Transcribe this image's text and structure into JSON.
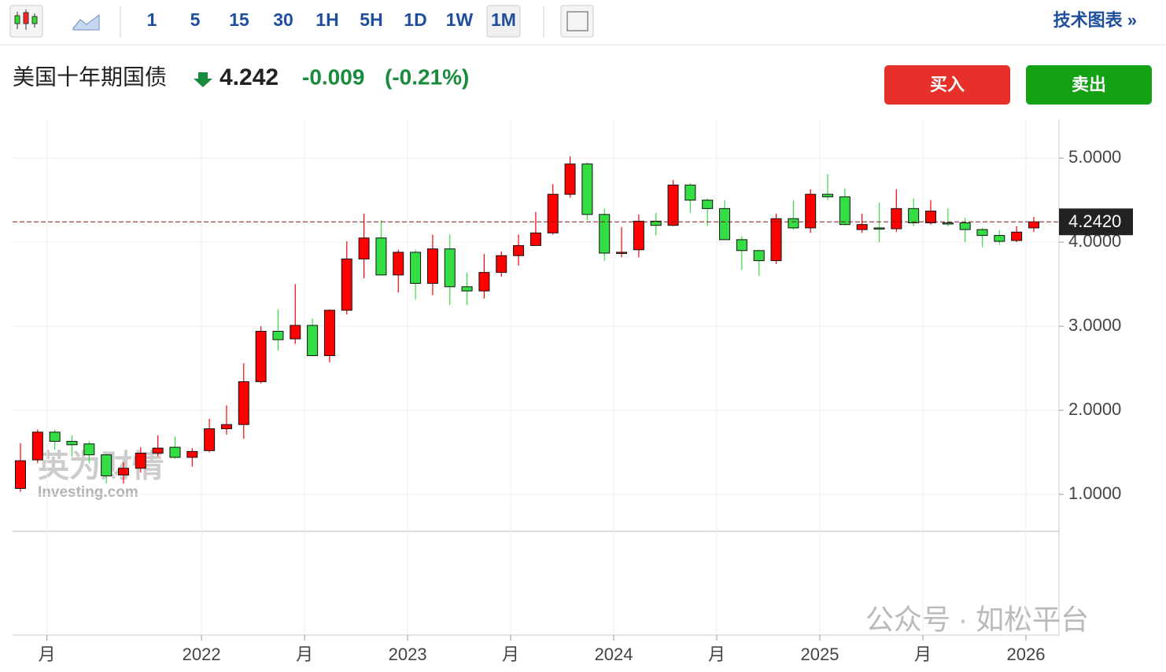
{
  "toolbar": {
    "intervals": [
      "1",
      "5",
      "15",
      "30",
      "1H",
      "5H",
      "1D",
      "1W",
      "1M"
    ],
    "active": "1M",
    "link": "技术图表 »"
  },
  "quote": {
    "name": "美国十年期国债",
    "price": "4.242",
    "change": "-0.009",
    "change_pct": "(-0.21%)"
  },
  "buttons": {
    "buy": "买入",
    "sell": "卖出"
  },
  "watermarks": [
    "英为财情",
    "Investing.com",
    "公众号 · 如松平台"
  ],
  "chart_data": {
    "type": "candlestick",
    "categories": [
      null,
      null,
      "月",
      null,
      null,
      null,
      null,
      null,
      null,
      null,
      null,
      "2022",
      null,
      null,
      null,
      null,
      null,
      "月",
      null,
      null,
      null,
      null,
      null,
      "2023",
      null,
      null,
      null,
      null,
      null,
      "月",
      null,
      null,
      null,
      null,
      null,
      "2024",
      null,
      null,
      null,
      null,
      null,
      "月",
      null,
      null,
      null,
      null,
      null,
      "2025",
      null,
      null,
      null,
      null,
      null,
      "月",
      null,
      null,
      null,
      null,
      null,
      "2026"
    ],
    "open": [
      1.07,
      1.41,
      1.74,
      1.63,
      1.6,
      1.47,
      1.23,
      1.31,
      1.49,
      1.56,
      1.44,
      1.52,
      1.78,
      1.83,
      2.34,
      2.94,
      2.85,
      3.01,
      2.65,
      3.19,
      3.8,
      4.05,
      3.61,
      3.88,
      3.51,
      3.92,
      3.47,
      3.42,
      3.64,
      3.84,
      3.96,
      4.11,
      4.57,
      4.93,
      4.33,
      3.87,
      3.91,
      4.25,
      4.2,
      4.68,
      4.5,
      4.4,
      4.03,
      3.9,
      3.78,
      4.28,
      4.17,
      4.57,
      4.54,
      4.15,
      4.17,
      4.16,
      4.4,
      4.23,
      4.23,
      4.23,
      4.15,
      4.08,
      4.02,
      4.17
    ],
    "high": [
      1.61,
      1.77,
      1.77,
      1.7,
      1.63,
      1.48,
      1.38,
      1.56,
      1.7,
      1.69,
      1.55,
      1.9,
      2.06,
      2.56,
      3.0,
      3.2,
      3.5,
      3.09,
      3.2,
      4.01,
      4.34,
      4.26,
      3.91,
      3.91,
      4.09,
      4.09,
      3.64,
      3.86,
      3.89,
      4.09,
      4.36,
      4.69,
      5.02,
      4.95,
      4.4,
      4.18,
      4.33,
      4.35,
      4.74,
      4.7,
      4.52,
      4.5,
      4.07,
      3.91,
      4.34,
      4.5,
      4.63,
      4.81,
      4.64,
      4.34,
      4.47,
      4.63,
      4.52,
      4.5,
      4.4,
      4.29,
      4.17,
      4.14,
      4.19,
      4.3
    ],
    "low": [
      1.03,
      1.37,
      1.53,
      1.45,
      1.37,
      1.13,
      1.13,
      1.26,
      1.45,
      1.42,
      1.33,
      1.5,
      1.71,
      1.66,
      2.32,
      2.71,
      2.79,
      2.65,
      2.57,
      3.14,
      3.57,
      3.61,
      3.4,
      3.32,
      3.37,
      3.25,
      3.25,
      3.33,
      3.59,
      3.72,
      3.96,
      4.09,
      4.53,
      4.26,
      3.78,
      3.82,
      3.82,
      4.08,
      4.19,
      4.35,
      4.19,
      4.03,
      3.67,
      3.6,
      3.74,
      4.15,
      4.11,
      4.5,
      4.2,
      4.11,
      4.0,
      4.12,
      4.19,
      4.21,
      4.19,
      4.0,
      3.94,
      3.97,
      4.0,
      4.12
    ],
    "close": [
      1.4,
      1.74,
      1.63,
      1.59,
      1.47,
      1.22,
      1.31,
      1.49,
      1.55,
      1.44,
      1.51,
      1.78,
      1.83,
      2.34,
      2.94,
      2.84,
      3.01,
      2.65,
      3.19,
      3.8,
      4.05,
      3.61,
      3.88,
      3.51,
      3.92,
      3.47,
      3.42,
      3.64,
      3.84,
      3.96,
      4.11,
      4.57,
      4.93,
      4.33,
      3.87,
      3.88,
      4.25,
      4.2,
      4.68,
      4.5,
      4.4,
      4.03,
      3.9,
      3.78,
      4.28,
      4.17,
      4.57,
      4.54,
      4.21,
      4.21,
      4.16,
      4.4,
      4.23,
      4.37,
      4.22,
      4.15,
      4.08,
      4.01,
      4.12,
      4.242
    ],
    "up_color": "#ff0000",
    "down_color": "#33dd44",
    "ylim": [
      0.56,
      5.46
    ],
    "yticks": [
      {
        "value": 1,
        "label": "1.0000"
      },
      {
        "value": 2,
        "label": "2.0000"
      },
      {
        "value": 3,
        "label": "3.0000"
      },
      {
        "value": 4,
        "label": "4.0000"
      },
      {
        "value": 5,
        "label": "5.0000"
      }
    ],
    "last": {
      "value": 4.242,
      "label": "4.2420"
    },
    "grid": true
  }
}
